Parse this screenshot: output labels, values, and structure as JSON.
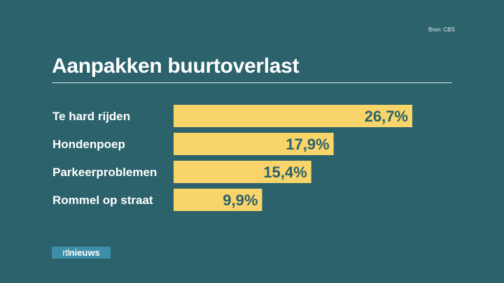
{
  "source": "Bron: CBS",
  "logo": {
    "prefix": "rtl",
    "suffix": "nieuws"
  },
  "colors": {
    "background": "#2b626b",
    "bar": "#f8d46b",
    "value_text": "#2b626b",
    "label_text": "#ffffff"
  },
  "chart_data": {
    "type": "bar",
    "orientation": "horizontal",
    "title": "Aanpakken buurtoverlast",
    "categories": [
      "Te hard rijden",
      "Hondenpoep",
      "Parkeerproblemen",
      "Rommel op straat"
    ],
    "values": [
      26.7,
      17.9,
      15.4,
      9.9
    ],
    "value_labels": [
      "26,7%",
      "17,9%",
      "15,4%",
      "9,9%"
    ],
    "unit": "%",
    "xlim": [
      0,
      26.7
    ],
    "grid": false,
    "legend": "none"
  }
}
